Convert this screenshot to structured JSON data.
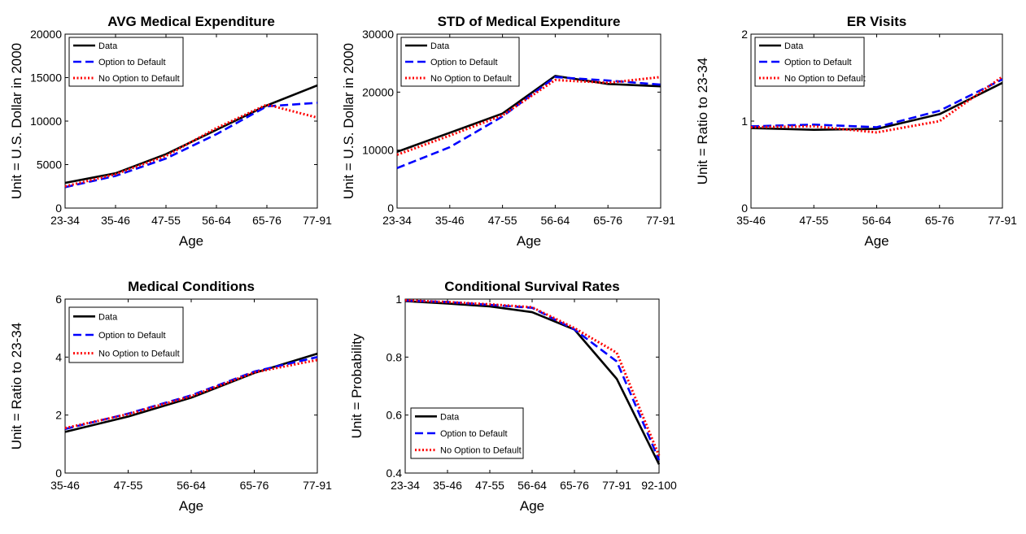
{
  "colors": {
    "data": "#000000",
    "option": "#0000ff",
    "no_option": "#ff0000"
  },
  "chart_data": [
    {
      "type": "line",
      "title": "AVG Medical Expenditure",
      "xlabel": "Age",
      "ylabel": "Unit = U.S. Dollar in 2000",
      "categories": [
        "23-34",
        "35-46",
        "47-55",
        "56-64",
        "65-76",
        "77-91"
      ],
      "ylim": [
        0,
        20000
      ],
      "yticks": [
        0,
        5000,
        10000,
        15000,
        20000
      ],
      "yticklabels": [
        "0",
        "5000",
        "10000",
        "15000",
        "20000"
      ],
      "grid": false,
      "legend_position": "top-left",
      "series": [
        {
          "name": "Data",
          "style": "solid",
          "values": [
            2900,
            4000,
            6200,
            9000,
            11800,
            14100
          ]
        },
        {
          "name": "Option to Default",
          "style": "dashed",
          "values": [
            2400,
            3700,
            5700,
            8500,
            11700,
            12100
          ]
        },
        {
          "name": "No Option to Default",
          "style": "dotted",
          "values": [
            2500,
            3900,
            6000,
            9200,
            11900,
            10400
          ]
        }
      ]
    },
    {
      "type": "line",
      "title": "STD of Medical Expenditure",
      "xlabel": "Age",
      "ylabel": "Unit = U.S. Dollar in 2000",
      "categories": [
        "23-34",
        "35-46",
        "47-55",
        "56-64",
        "65-76",
        "77-91"
      ],
      "ylim": [
        0,
        30000
      ],
      "yticks": [
        0,
        10000,
        20000,
        30000
      ],
      "yticklabels": [
        "0",
        "10000",
        "20000",
        "30000"
      ],
      "grid": false,
      "legend_position": "top-left",
      "series": [
        {
          "name": "Data",
          "style": "solid",
          "values": [
            9700,
            13000,
            16300,
            22800,
            21400,
            21000
          ]
        },
        {
          "name": "Option to Default",
          "style": "dashed",
          "values": [
            6900,
            10500,
            15800,
            22600,
            22000,
            21300
          ]
        },
        {
          "name": "No Option to Default",
          "style": "dotted",
          "values": [
            9200,
            12500,
            16000,
            22100,
            21600,
            22600
          ]
        }
      ]
    },
    {
      "type": "line",
      "title": "ER Visits",
      "xlabel": "Age",
      "ylabel": "Unit = Ratio to 23-34",
      "categories": [
        "35-46",
        "47-55",
        "56-64",
        "65-76",
        "77-91"
      ],
      "ylim": [
        0,
        2
      ],
      "yticks": [
        0,
        1,
        2
      ],
      "yticklabels": [
        "0",
        "1",
        "2"
      ],
      "grid": false,
      "legend_position": "top-left",
      "series": [
        {
          "name": "Data",
          "style": "solid",
          "values": [
            0.92,
            0.9,
            0.91,
            1.08,
            1.44
          ]
        },
        {
          "name": "Option to Default",
          "style": "dashed",
          "values": [
            0.94,
            0.96,
            0.93,
            1.12,
            1.48
          ]
        },
        {
          "name": "No Option to Default",
          "style": "dotted",
          "values": [
            0.93,
            0.94,
            0.87,
            1.0,
            1.51
          ]
        }
      ]
    },
    {
      "type": "line",
      "title": "Medical Conditions",
      "xlabel": "Age",
      "ylabel": "Unit = Ratio to 23-34",
      "categories": [
        "35-46",
        "47-55",
        "56-64",
        "65-76",
        "77-91"
      ],
      "ylim": [
        0,
        6
      ],
      "yticks": [
        0,
        2,
        4,
        6
      ],
      "yticklabels": [
        "0",
        "2",
        "4",
        "6"
      ],
      "grid": false,
      "legend_position": "top-left",
      "series": [
        {
          "name": "Data",
          "style": "solid",
          "values": [
            1.42,
            1.95,
            2.6,
            3.45,
            4.12
          ]
        },
        {
          "name": "Option to Default",
          "style": "dashed",
          "values": [
            1.52,
            2.05,
            2.68,
            3.5,
            4.0
          ]
        },
        {
          "name": "No Option to Default",
          "style": "dotted",
          "values": [
            1.55,
            2.03,
            2.65,
            3.47,
            3.9
          ]
        }
      ]
    },
    {
      "type": "line",
      "title": "Conditional Survival Rates",
      "xlabel": "Age",
      "ylabel": "Unit = Probability",
      "categories": [
        "23-34",
        "35-46",
        "47-55",
        "56-64",
        "65-76",
        "77-91",
        "92-100"
      ],
      "ylim": [
        0.4,
        1
      ],
      "yticks": [
        0.4,
        0.6,
        0.8,
        1
      ],
      "yticklabels": [
        "0.4",
        "0.6",
        "0.8",
        "1"
      ],
      "grid": false,
      "legend_position": "bottom-left",
      "series": [
        {
          "name": "Data",
          "style": "solid",
          "values": [
            0.993,
            0.985,
            0.975,
            0.955,
            0.895,
            0.725,
            0.43
          ]
        },
        {
          "name": "Option to Default",
          "style": "dashed",
          "values": [
            0.995,
            0.99,
            0.98,
            0.97,
            0.895,
            0.785,
            0.445
          ]
        },
        {
          "name": "No Option to Default",
          "style": "dotted",
          "values": [
            0.996,
            0.99,
            0.982,
            0.972,
            0.9,
            0.815,
            0.46
          ]
        }
      ]
    }
  ]
}
